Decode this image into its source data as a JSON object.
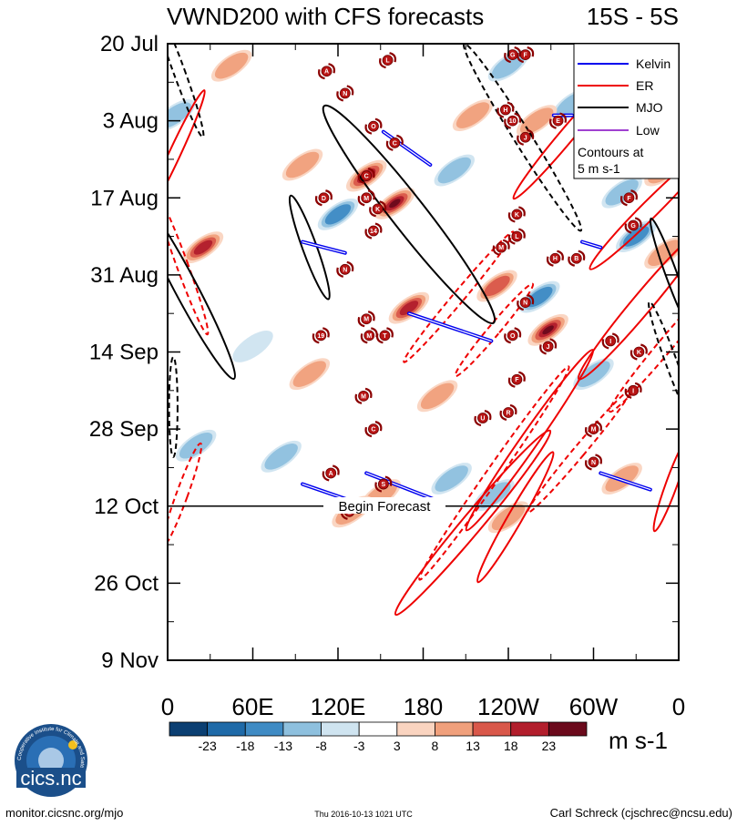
{
  "chart_data": {
    "type": "heatmap",
    "title": "VWND200 with CFS forecasts",
    "subtitle": "15S - 5S",
    "y_ticks": [
      "20 Jul",
      "3 Aug",
      "17 Aug",
      "31 Aug",
      "14 Sep",
      "28 Sep",
      "12 Oct",
      "26 Oct",
      "9 Nov"
    ],
    "x_ticks": [
      "0",
      "60E",
      "120E",
      "180",
      "120W",
      "60W",
      "0"
    ],
    "x_range_deg": [
      0,
      360
    ],
    "y_range_days": [
      0,
      112
    ],
    "forecast_start_day": 84,
    "forecast_label": "Begin Forecast",
    "colorbar": {
      "labels": [
        "-23",
        "-18",
        "-13",
        "-8",
        "-3",
        "3",
        "8",
        "13",
        "18",
        "23"
      ],
      "colors": [
        "#0b3f72",
        "#1f6aa8",
        "#3f8bc4",
        "#8ec0de",
        "#cfe4f0",
        "#ffffff",
        "#fad4c0",
        "#f0a07c",
        "#d9584a",
        "#b21e2c",
        "#6b0a1c"
      ],
      "unit": "m s-1"
    },
    "legend": {
      "items": [
        {
          "label": "Kelvin",
          "color": "#0000ee"
        },
        {
          "label": "ER",
          "color": "#ee0000"
        },
        {
          "label": "MJO",
          "color": "#000000"
        },
        {
          "label": "Low",
          "color": "#a040d0"
        }
      ],
      "note_line1": "Contours at",
      "note_line2": "5 m s-1"
    },
    "anomaly_patches": [
      {
        "lon": 160,
        "day": 29,
        "value": 24
      },
      {
        "lon": 140,
        "day": 24,
        "value": 18
      },
      {
        "lon": 25,
        "day": 37,
        "value": 22
      },
      {
        "lon": 170,
        "day": 48,
        "value": 20
      },
      {
        "lon": 268,
        "day": 52,
        "value": 25
      },
      {
        "lon": 232,
        "day": 44,
        "value": 14
      },
      {
        "lon": 262,
        "day": 46,
        "value": -14
      },
      {
        "lon": 285,
        "day": 11,
        "value": -12
      },
      {
        "lon": 215,
        "day": 13,
        "value": 10
      },
      {
        "lon": 202,
        "day": 23,
        "value": -10
      },
      {
        "lon": 120,
        "day": 31,
        "value": -13
      },
      {
        "lon": 95,
        "day": 22,
        "value": 12
      },
      {
        "lon": 5,
        "day": 13,
        "value": -9
      },
      {
        "lon": 330,
        "day": 35,
        "value": -14
      },
      {
        "lon": 350,
        "day": 38,
        "value": 12
      },
      {
        "lon": 20,
        "day": 73,
        "value": -12
      },
      {
        "lon": 80,
        "day": 75,
        "value": -10
      },
      {
        "lon": 150,
        "day": 82,
        "value": 9
      },
      {
        "lon": 200,
        "day": 79,
        "value": -12
      },
      {
        "lon": 230,
        "day": 82,
        "value": -10
      },
      {
        "lon": 300,
        "day": 60,
        "value": -9
      },
      {
        "lon": 320,
        "day": 79,
        "value": 12
      },
      {
        "lon": 240,
        "day": 86,
        "value": 10
      },
      {
        "lon": 130,
        "day": 85,
        "value": 9
      },
      {
        "lon": 320,
        "day": 27,
        "value": -8
      },
      {
        "lon": 60,
        "day": 55,
        "value": -7
      },
      {
        "lon": 100,
        "day": 60,
        "value": 8
      },
      {
        "lon": 190,
        "day": 64,
        "value": 9
      },
      {
        "lon": 45,
        "day": 4,
        "value": 8
      },
      {
        "lon": 260,
        "day": 14,
        "value": 12
      },
      {
        "lon": 350,
        "day": 23,
        "value": 10
      },
      {
        "lon": 240,
        "day": 4,
        "value": -8
      }
    ],
    "kelvin_waves": [
      {
        "lon1": 152,
        "day1": 16,
        "lon2": 185,
        "day2": 22
      },
      {
        "lon1": 95,
        "day1": 36,
        "lon2": 125,
        "day2": 38
      },
      {
        "lon1": 170,
        "day1": 49,
        "lon2": 228,
        "day2": 54
      },
      {
        "lon1": 140,
        "day1": 78,
        "lon2": 190,
        "day2": 83
      },
      {
        "lon1": 95,
        "day1": 80,
        "lon2": 140,
        "day2": 84
      },
      {
        "lon1": 305,
        "day1": 78,
        "lon2": 340,
        "day2": 81
      },
      {
        "lon1": 272,
        "day1": 13,
        "lon2": 285,
        "day2": 13
      },
      {
        "lon1": 292,
        "day1": 36,
        "lon2": 305,
        "day2": 37
      }
    ],
    "er_waves": [
      {
        "lon": 5,
        "day": 20,
        "rx": 4,
        "ry": 28,
        "rot": 25,
        "dash": false
      },
      {
        "lon": 10,
        "day": 40,
        "rx": 4,
        "ry": 30,
        "rot": -20,
        "dash": true
      },
      {
        "lon": 280,
        "day": 17,
        "rx": 5,
        "ry": 32,
        "rot": 40,
        "dash": false
      },
      {
        "lon": 340,
        "day": 30,
        "rx": 6,
        "ry": 34,
        "rot": 45,
        "dash": false
      },
      {
        "lon": 335,
        "day": 47,
        "rx": 7,
        "ry": 40,
        "rot": 40,
        "dash": false
      },
      {
        "lon": 350,
        "day": 55,
        "rx": 5,
        "ry": 34,
        "rot": 40,
        "dash": true
      },
      {
        "lon": 255,
        "day": 72,
        "rx": 6,
        "ry": 44,
        "rot": 35,
        "dash": false
      },
      {
        "lon": 230,
        "day": 78,
        "rx": 5,
        "ry": 52,
        "rot": 35,
        "dash": true
      },
      {
        "lon": 215,
        "day": 87,
        "rx": 7,
        "ry": 48,
        "rot": 40,
        "dash": false
      },
      {
        "lon": 245,
        "day": 86,
        "rx": 5,
        "ry": 30,
        "rot": 30,
        "dash": false
      },
      {
        "lon": 290,
        "day": 74,
        "rx": 4,
        "ry": 32,
        "rot": 40,
        "dash": true
      },
      {
        "lon": 205,
        "day": 46,
        "rx": 4,
        "ry": 34,
        "rot": 40,
        "dash": true
      },
      {
        "lon": 230,
        "day": 52,
        "rx": 4,
        "ry": 24,
        "rot": 40,
        "dash": true
      },
      {
        "lon": 355,
        "day": 80,
        "rx": 4,
        "ry": 20,
        "rot": 20,
        "dash": false
      },
      {
        "lon": 10,
        "day": 82,
        "rx": 4,
        "ry": 22,
        "rot": 20,
        "dash": true
      }
    ],
    "mjo_waves": [
      {
        "lon": 170,
        "day": 31,
        "rx": 12,
        "ry": 55,
        "rot": -38,
        "dash": false
      },
      {
        "lon": 100,
        "day": 37,
        "rx": 5,
        "ry": 22,
        "rot": -20,
        "dash": false
      },
      {
        "lon": 12,
        "day": 44,
        "rx": 8,
        "ry": 42,
        "rot": -28,
        "dash": false
      },
      {
        "lon": 250,
        "day": 17,
        "rx": 6,
        "ry": 44,
        "rot": -32,
        "dash": true
      },
      {
        "lon": 8,
        "day": 5,
        "rx": 4,
        "ry": 28,
        "rot": -20,
        "dash": true
      },
      {
        "lon": 355,
        "day": 42,
        "rx": 4,
        "ry": 24,
        "rot": -20,
        "dash": false
      },
      {
        "lon": 355,
        "day": 58,
        "rx": 4,
        "ry": 26,
        "rot": -20,
        "dash": true
      },
      {
        "lon": 4,
        "day": 66,
        "rx": 3,
        "ry": 20,
        "rot": 0,
        "dash": true
      }
    ],
    "storms": [
      {
        "lon": 112,
        "day": 5,
        "label": "A"
      },
      {
        "lon": 155,
        "day": 3,
        "label": "L"
      },
      {
        "lon": 125,
        "day": 9,
        "label": "N"
      },
      {
        "lon": 145,
        "day": 15,
        "label": "O"
      },
      {
        "lon": 160,
        "day": 18,
        "label": "C"
      },
      {
        "lon": 140,
        "day": 24,
        "label": "C"
      },
      {
        "lon": 110,
        "day": 28,
        "label": "D"
      },
      {
        "lon": 140,
        "day": 28,
        "label": "M"
      },
      {
        "lon": 148,
        "day": 30,
        "label": "K"
      },
      {
        "lon": 145,
        "day": 34,
        "label": "14"
      },
      {
        "lon": 125,
        "day": 41,
        "label": "N"
      },
      {
        "lon": 140,
        "day": 50,
        "label": "M"
      },
      {
        "lon": 108,
        "day": 53,
        "label": "19"
      },
      {
        "lon": 142,
        "day": 53,
        "label": "M"
      },
      {
        "lon": 153,
        "day": 53,
        "label": "T"
      },
      {
        "lon": 138,
        "day": 64,
        "label": "M"
      },
      {
        "lon": 145,
        "day": 70,
        "label": "C"
      },
      {
        "lon": 115,
        "day": 78,
        "label": "A"
      },
      {
        "lon": 152,
        "day": 80,
        "label": "S"
      },
      {
        "lon": 128,
        "day": 85,
        "label": "E"
      },
      {
        "lon": 235,
        "day": 37,
        "label": "M"
      },
      {
        "lon": 246,
        "day": 35,
        "label": "L"
      },
      {
        "lon": 246,
        "day": 31,
        "label": "K"
      },
      {
        "lon": 252,
        "day": 47,
        "label": "N"
      },
      {
        "lon": 243,
        "day": 53,
        "label": "O"
      },
      {
        "lon": 268,
        "day": 55,
        "label": "J"
      },
      {
        "lon": 246,
        "day": 61,
        "label": "F"
      },
      {
        "lon": 240,
        "day": 67,
        "label": "R"
      },
      {
        "lon": 222,
        "day": 68,
        "label": "U"
      },
      {
        "lon": 243,
        "day": 2,
        "label": "G"
      },
      {
        "lon": 252,
        "day": 2,
        "label": "F"
      },
      {
        "lon": 238,
        "day": 12,
        "label": "H"
      },
      {
        "lon": 243,
        "day": 14,
        "label": "10"
      },
      {
        "lon": 252,
        "day": 17,
        "label": "J"
      },
      {
        "lon": 275,
        "day": 14,
        "label": "E"
      },
      {
        "lon": 325,
        "day": 28,
        "label": "F"
      },
      {
        "lon": 328,
        "day": 33,
        "label": "G"
      },
      {
        "lon": 273,
        "day": 39,
        "label": "H"
      },
      {
        "lon": 288,
        "day": 39,
        "label": "B"
      },
      {
        "lon": 312,
        "day": 54,
        "label": "I"
      },
      {
        "lon": 332,
        "day": 56,
        "label": "K"
      },
      {
        "lon": 328,
        "day": 63,
        "label": "I"
      },
      {
        "lon": 300,
        "day": 70,
        "label": "M"
      },
      {
        "lon": 300,
        "day": 76,
        "label": "N"
      }
    ]
  },
  "footer": {
    "logo_text": "cics.nc",
    "logo_ring_text": "Cooperative Institute for Climate and Satellites",
    "url": "monitor.cicsnc.org/mjo",
    "timestamp": "Thu 2016-10-13 1021 UTC",
    "author": "Carl Schreck (cjschrec@ncsu.edu)"
  }
}
